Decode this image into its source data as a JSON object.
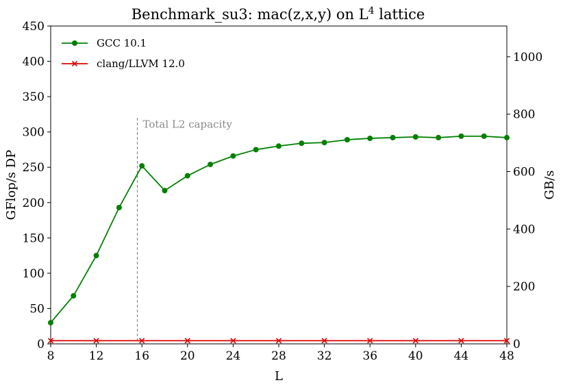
{
  "chart_data": {
    "type": "line",
    "title": "Benchmark_su3: mac(z,x,y) on L",
    "title_superscript": "4",
    "title_suffix": " lattice",
    "xlabel": "L",
    "ylabel": "GFlop/s DP",
    "ylabel_right": "GB/s",
    "xlim": [
      8,
      48
    ],
    "ylim": [
      0,
      450
    ],
    "ylim_right": [
      0,
      1107
    ],
    "x_ticks": [
      8,
      12,
      16,
      20,
      24,
      28,
      32,
      36,
      40,
      44,
      48
    ],
    "y_ticks": [
      0,
      50,
      100,
      150,
      200,
      250,
      300,
      350,
      400,
      450
    ],
    "y_ticks_right": [
      0,
      200,
      400,
      600,
      800,
      1000
    ],
    "grid": false,
    "legend_position": "top-left",
    "series": [
      {
        "name": "GCC 10.1",
        "color": "#008000",
        "marker": "circle",
        "x": [
          8,
          10,
          12,
          14,
          16,
          18,
          20,
          22,
          24,
          26,
          28,
          30,
          32,
          34,
          36,
          38,
          40,
          42,
          44,
          46,
          48
        ],
        "values": [
          30,
          68,
          125,
          193,
          252,
          217,
          238,
          254,
          266,
          275,
          280,
          284,
          285,
          289,
          291,
          292,
          293,
          292,
          294,
          294,
          292
        ]
      },
      {
        "name": "clang/LLVM 12.0",
        "color": "#e00000",
        "marker": "x",
        "x": [
          8,
          12,
          16,
          20,
          24,
          28,
          32,
          36,
          40,
          44,
          48
        ],
        "values": [
          4.5,
          4.5,
          4.5,
          4.5,
          4.5,
          4.5,
          4.5,
          4.5,
          4.5,
          4.5,
          4.5
        ]
      }
    ],
    "annotations": [
      {
        "text": "Total L2 capacity",
        "x": 15.6,
        "color": "#888888",
        "style": "dashed-vertical-line"
      }
    ]
  }
}
